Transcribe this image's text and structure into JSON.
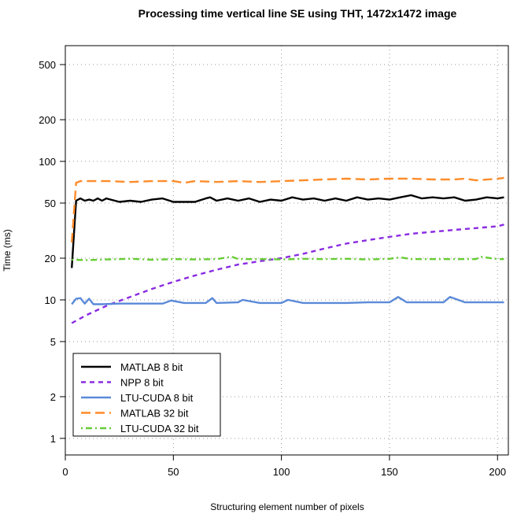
{
  "chart_data": {
    "type": "line",
    "title": "Processing time vertical line SE using THT, 1472x1472 image",
    "xlabel": "Structuring element number of pixels",
    "ylabel": "Time (ms)",
    "xlim": [
      0,
      205
    ],
    "ylim": [
      0.8,
      650
    ],
    "y_scale": "log",
    "x_ticks": [
      0,
      50,
      100,
      150,
      200
    ],
    "y_ticks": [
      1,
      2,
      5,
      10,
      20,
      50,
      100,
      200,
      500
    ],
    "grid": true,
    "legend_position": "bottom-left",
    "series": [
      {
        "name": "MATLAB 8 bit",
        "color": "#000000",
        "dash": "solid",
        "x": [
          3,
          5,
          7,
          9,
          11,
          13,
          15,
          17,
          19,
          21,
          25,
          30,
          35,
          40,
          45,
          50,
          55,
          60,
          65,
          67,
          70,
          75,
          80,
          85,
          90,
          95,
          100,
          105,
          110,
          115,
          120,
          125,
          130,
          135,
          140,
          145,
          150,
          155,
          160,
          165,
          170,
          175,
          180,
          185,
          190,
          195,
          200,
          203
        ],
        "values": [
          17,
          52,
          54,
          52,
          53,
          52,
          54,
          52,
          54,
          53,
          51,
          52,
          51,
          53,
          54,
          51,
          51,
          51,
          54,
          55,
          52,
          54,
          52,
          54,
          51,
          53,
          52,
          55,
          53,
          54,
          52,
          54,
          52,
          55,
          53,
          54,
          53,
          55,
          57,
          54,
          55,
          54,
          55,
          52,
          53,
          55,
          54,
          55
        ]
      },
      {
        "name": "NPP 8 bit",
        "color": "#8a2be2",
        "dash": "dashed",
        "x": [
          3,
          10,
          20,
          30,
          40,
          50,
          60,
          70,
          80,
          90,
          100,
          110,
          120,
          130,
          140,
          150,
          160,
          170,
          180,
          190,
          200,
          203
        ],
        "values": [
          6.8,
          7.8,
          9.2,
          10.5,
          12,
          13.5,
          15,
          16.5,
          18,
          19,
          20,
          21.5,
          23.5,
          25.5,
          27,
          28.5,
          30,
          31,
          32,
          33,
          34,
          35
        ]
      },
      {
        "name": "LTU-CUDA 8 bit",
        "color": "#5b8ad8",
        "dash": "solid",
        "x": [
          3,
          5,
          7,
          9,
          11,
          13,
          17,
          25,
          35,
          45,
          49,
          55,
          65,
          68,
          70,
          80,
          82,
          90,
          100,
          103,
          110,
          120,
          130,
          140,
          150,
          154,
          158,
          165,
          175,
          178,
          185,
          195,
          203
        ],
        "values": [
          9.3,
          10.2,
          10.3,
          9.4,
          10.2,
          9.3,
          9.3,
          9.4,
          9.4,
          9.4,
          9.9,
          9.5,
          9.5,
          10.3,
          9.5,
          9.6,
          10,
          9.5,
          9.5,
          10,
          9.5,
          9.5,
          9.5,
          9.6,
          9.6,
          10.5,
          9.6,
          9.6,
          9.6,
          10.5,
          9.6,
          9.6,
          9.6
        ]
      },
      {
        "name": "MATLAB 32 bit",
        "color": "#ff8c2a",
        "dash": "longdash",
        "x": [
          3,
          5,
          7,
          10,
          20,
          30,
          40,
          50,
          55,
          60,
          70,
          80,
          90,
          100,
          110,
          120,
          130,
          140,
          150,
          160,
          170,
          180,
          185,
          190,
          200,
          203
        ],
        "values": [
          26,
          70,
          72,
          72,
          72,
          71,
          72,
          72,
          70,
          72,
          71,
          72,
          71,
          72,
          73,
          74,
          75,
          74,
          75,
          75,
          74,
          74,
          75,
          73,
          75,
          76
        ]
      },
      {
        "name": "LTU-CUDA 32 bit",
        "color": "#66cc33",
        "dash": "dotdash",
        "x": [
          3,
          10,
          20,
          30,
          40,
          50,
          60,
          70,
          77,
          80,
          90,
          100,
          110,
          120,
          130,
          140,
          150,
          155,
          160,
          170,
          180,
          190,
          192,
          200,
          203
        ],
        "values": [
          19.5,
          19.4,
          19.6,
          19.8,
          19.5,
          19.7,
          19.6,
          19.7,
          20.5,
          19.7,
          19.7,
          19.6,
          19.8,
          19.7,
          19.8,
          19.6,
          19.8,
          20.3,
          19.7,
          19.7,
          19.7,
          19.7,
          20.5,
          19.7,
          19.7
        ]
      }
    ]
  }
}
